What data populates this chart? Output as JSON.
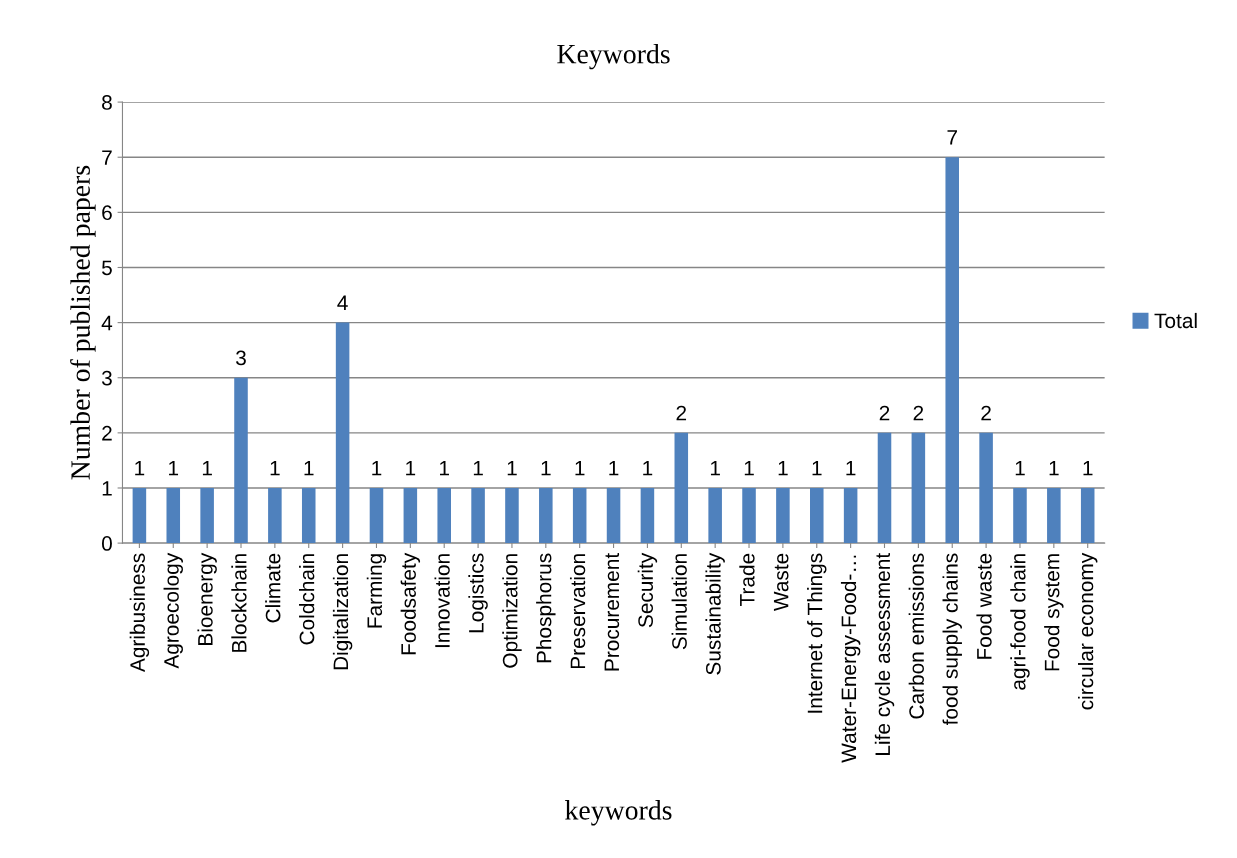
{
  "chart_data": {
    "type": "bar",
    "title": "Keywords",
    "xlabel": "keywords",
    "ylabel": "Number of published papers",
    "categories": [
      "Agribusiness",
      "Agroecology",
      "Bioenergy",
      "Blockchain",
      "Climate",
      "Coldchain",
      "Digitalization",
      "Farming",
      "Foodsafety",
      "Innovation",
      "Logistics",
      "Optimization",
      "Phosphorus",
      "Preservation",
      "Procurement",
      "Security",
      "Simulation",
      "Sustainability",
      "Trade",
      "Waste",
      "Internet of Things",
      "Water-Energy-Food-…",
      "Life cycle assessment",
      "Carbon emissions",
      "food supply chains",
      "Food waste",
      "agri-food chain",
      "Food system",
      "circular economy"
    ],
    "series": [
      {
        "name": "Total",
        "color": "#4f81bd",
        "values": [
          1,
          1,
          1,
          3,
          1,
          1,
          4,
          1,
          1,
          1,
          1,
          1,
          1,
          1,
          1,
          1,
          2,
          1,
          1,
          1,
          1,
          1,
          2,
          2,
          7,
          2,
          1,
          1,
          1
        ]
      }
    ],
    "ylim": [
      0,
      8
    ],
    "yticks": [
      0,
      1,
      2,
      3,
      4,
      5,
      6,
      7,
      8
    ],
    "grid": "y",
    "legend": "right",
    "data_labels": true
  }
}
